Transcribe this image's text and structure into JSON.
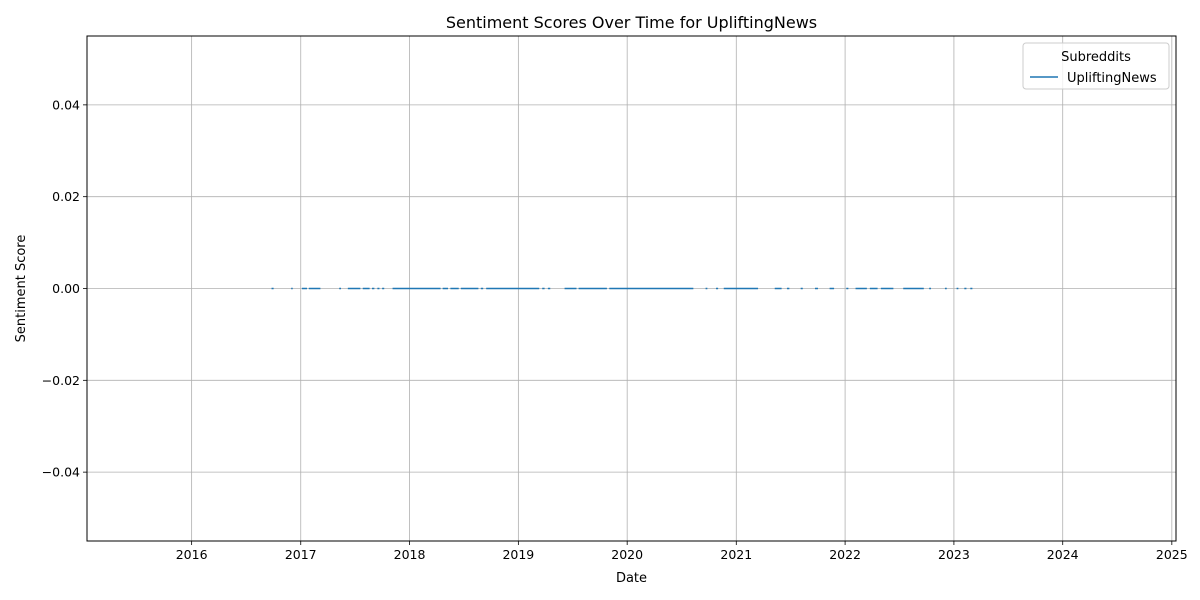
{
  "chart_data": {
    "type": "line",
    "title": "Sentiment Scores Over Time for UpliftingNews",
    "xlabel": "Date",
    "ylabel": "Sentiment Score",
    "xlim": [
      "2015-01-15",
      "2025-01-15"
    ],
    "ylim": [
      -0.055,
      0.055
    ],
    "x_ticks": [
      "2016",
      "2017",
      "2018",
      "2019",
      "2020",
      "2021",
      "2022",
      "2023",
      "2024",
      "2025"
    ],
    "y_ticks": [
      "0.04",
      "0.02",
      "0.00",
      "−0.02",
      "−0.04"
    ],
    "grid": true,
    "legend": {
      "title": "Subreddits",
      "placement": "top-right"
    },
    "series_color": "#1f77b4",
    "series": [
      {
        "name": "UpliftingNews",
        "segments": [
          {
            "start": "2016-09-25",
            "end": "2016-10-02",
            "y": 0.0
          },
          {
            "start": "2016-11-30",
            "end": "2016-12-05",
            "y": 0.0
          },
          {
            "start": "2017-01-05",
            "end": "2017-01-22",
            "y": 0.0
          },
          {
            "start": "2017-01-28",
            "end": "2017-03-08",
            "y": 0.0
          },
          {
            "start": "2017-05-10",
            "end": "2017-05-16",
            "y": 0.0
          },
          {
            "start": "2017-06-08",
            "end": "2017-07-20",
            "y": 0.0
          },
          {
            "start": "2017-07-28",
            "end": "2017-08-20",
            "y": 0.0
          },
          {
            "start": "2017-08-28",
            "end": "2017-09-05",
            "y": 0.0
          },
          {
            "start": "2017-09-15",
            "end": "2017-09-22",
            "y": 0.0
          },
          {
            "start": "2017-10-01",
            "end": "2017-10-08",
            "y": 0.0
          },
          {
            "start": "2017-11-05",
            "end": "2018-04-15",
            "y": 0.0
          },
          {
            "start": "2018-04-22",
            "end": "2018-05-10",
            "y": 0.0
          },
          {
            "start": "2018-05-18",
            "end": "2018-06-15",
            "y": 0.0
          },
          {
            "start": "2018-06-22",
            "end": "2018-08-20",
            "y": 0.0
          },
          {
            "start": "2018-08-28",
            "end": "2018-09-05",
            "y": 0.0
          },
          {
            "start": "2018-09-15",
            "end": "2019-03-12",
            "y": 0.0
          },
          {
            "start": "2019-03-22",
            "end": "2019-03-30",
            "y": 0.0
          },
          {
            "start": "2019-04-10",
            "end": "2019-04-18",
            "y": 0.0
          },
          {
            "start": "2019-06-05",
            "end": "2019-07-15",
            "y": 0.0
          },
          {
            "start": "2019-07-22",
            "end": "2019-10-25",
            "y": 0.0
          },
          {
            "start": "2019-11-02",
            "end": "2020-08-10",
            "y": 0.0
          },
          {
            "start": "2020-09-20",
            "end": "2020-09-26",
            "y": 0.0
          },
          {
            "start": "2020-10-25",
            "end": "2020-11-01",
            "y": 0.0
          },
          {
            "start": "2020-11-20",
            "end": "2021-03-15",
            "y": 0.0
          },
          {
            "start": "2021-05-10",
            "end": "2021-06-02",
            "y": 0.0
          },
          {
            "start": "2021-06-20",
            "end": "2021-06-28",
            "y": 0.0
          },
          {
            "start": "2021-08-05",
            "end": "2021-08-12",
            "y": 0.0
          },
          {
            "start": "2021-09-22",
            "end": "2021-10-02",
            "y": 0.0
          },
          {
            "start": "2021-11-10",
            "end": "2021-11-25",
            "y": 0.0
          },
          {
            "start": "2022-01-05",
            "end": "2022-01-12",
            "y": 0.0
          },
          {
            "start": "2022-02-05",
            "end": "2022-03-15",
            "y": 0.0
          },
          {
            "start": "2022-03-25",
            "end": "2022-04-20",
            "y": 0.0
          },
          {
            "start": "2022-05-01",
            "end": "2022-06-12",
            "y": 0.0
          },
          {
            "start": "2022-07-15",
            "end": "2022-09-22",
            "y": 0.0
          },
          {
            "start": "2022-10-10",
            "end": "2022-10-16",
            "y": 0.0
          },
          {
            "start": "2022-12-02",
            "end": "2022-12-08",
            "y": 0.0
          },
          {
            "start": "2023-01-10",
            "end": "2023-01-16",
            "y": 0.0
          },
          {
            "start": "2023-02-05",
            "end": "2023-02-12",
            "y": 0.0
          },
          {
            "start": "2023-02-25",
            "end": "2023-03-04",
            "y": 0.0
          }
        ]
      }
    ]
  }
}
